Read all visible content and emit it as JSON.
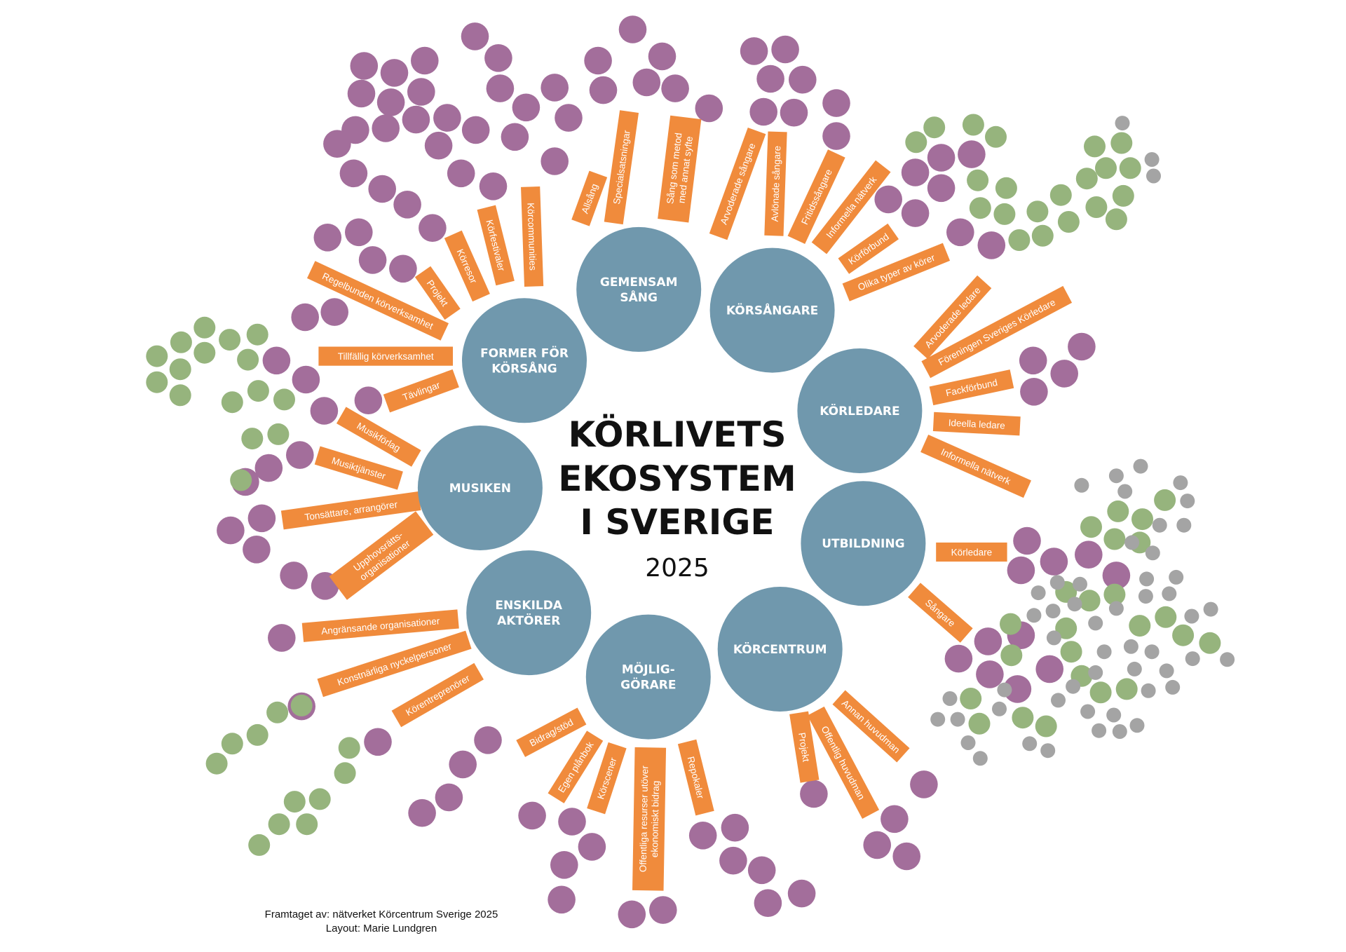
{
  "colors": {
    "hub": "#7098ad",
    "bar": "#f08b3c",
    "purple": "#a36e9b",
    "green": "#96b47d",
    "gray": "#a4a4a4",
    "title": "#111111"
  },
  "title": {
    "line1": "KÖRLIVETS",
    "line2": "EKOSYSTEM",
    "line3": "I SVERIGE",
    "year": "2025"
  },
  "hubs": [
    {
      "id": "gemensam-sang",
      "lines": [
        "GEMENSAM",
        "SÅNG"
      ]
    },
    {
      "id": "korsangare",
      "lines": [
        "KÖRSÅNGARE"
      ]
    },
    {
      "id": "korledare",
      "lines": [
        "KÖRLEDARE"
      ]
    },
    {
      "id": "utbildning",
      "lines": [
        "UTBILDNING"
      ]
    },
    {
      "id": "korcentrum",
      "lines": [
        "KÖRCENTRUM"
      ]
    },
    {
      "id": "mojliggorare",
      "lines": [
        "MÖJLIG-",
        "GÖRARE"
      ]
    },
    {
      "id": "enskilda-aktorer",
      "lines": [
        "ENSKILDA",
        "AKTÖRER"
      ]
    },
    {
      "id": "musiken",
      "lines": [
        "MUSIKEN"
      ]
    },
    {
      "id": "former-for-korsang",
      "lines": [
        "FORMER FÖR",
        "KÖRSÅNG"
      ]
    }
  ],
  "spokes": [
    {
      "hub": "gemensam-sang",
      "lines": [
        "Allsång"
      ]
    },
    {
      "hub": "gemensam-sang",
      "lines": [
        "Specialsatsningar"
      ]
    },
    {
      "hub": "gemensam-sang",
      "lines": [
        "Sång som metod",
        "med annat syfte"
      ]
    },
    {
      "hub": "korsangare",
      "lines": [
        "Arvoderade sångare"
      ]
    },
    {
      "hub": "korsangare",
      "lines": [
        "Avlönade sångare"
      ]
    },
    {
      "hub": "korsangare",
      "lines": [
        "Fritidssångare"
      ]
    },
    {
      "hub": "korsangare",
      "lines": [
        "Informella nätverk"
      ]
    },
    {
      "hub": "korsangare",
      "lines": [
        "Körförbund"
      ]
    },
    {
      "hub": "korsangare",
      "lines": [
        "Olika typer av körer"
      ]
    },
    {
      "hub": "korledare",
      "lines": [
        "Arvoderade ledare"
      ]
    },
    {
      "hub": "korledare",
      "lines": [
        "Föreningen Sveriges Körledare"
      ]
    },
    {
      "hub": "korledare",
      "lines": [
        "Fackförbund"
      ]
    },
    {
      "hub": "korledare",
      "lines": [
        "Ideella ledare"
      ]
    },
    {
      "hub": "korledare",
      "lines": [
        "Informella nätverk"
      ]
    },
    {
      "hub": "utbildning",
      "lines": [
        "Körledare"
      ]
    },
    {
      "hub": "utbildning",
      "lines": [
        "Sångare"
      ]
    },
    {
      "hub": "korcentrum",
      "lines": [
        "Annan huvudman"
      ]
    },
    {
      "hub": "korcentrum",
      "lines": [
        "Offentlig huvudman"
      ]
    },
    {
      "hub": "korcentrum",
      "lines": [
        "Projekt"
      ]
    },
    {
      "hub": "mojliggorare",
      "lines": [
        "Repokaler"
      ]
    },
    {
      "hub": "mojliggorare",
      "lines": [
        "Offentliga resurser utöver",
        "ekonomiskt bidrag"
      ]
    },
    {
      "hub": "mojliggorare",
      "lines": [
        "Körscener"
      ]
    },
    {
      "hub": "mojliggorare",
      "lines": [
        "Egen plånbok"
      ]
    },
    {
      "hub": "mojliggorare",
      "lines": [
        "Bidrag/stöd"
      ]
    },
    {
      "hub": "enskilda-aktorer",
      "lines": [
        "Körentreprenörer"
      ]
    },
    {
      "hub": "enskilda-aktorer",
      "lines": [
        "Konstnärliga nyckelpersoner"
      ]
    },
    {
      "hub": "enskilda-aktorer",
      "lines": [
        "Angränsande organisationer"
      ]
    },
    {
      "hub": "musiken",
      "lines": [
        "Upphovsrätts-",
        "organisationer"
      ]
    },
    {
      "hub": "musiken",
      "lines": [
        "Tonsättare, arrangörer"
      ]
    },
    {
      "hub": "musiken",
      "lines": [
        "Musiktjänster"
      ]
    },
    {
      "hub": "musiken",
      "lines": [
        "Musikförlag"
      ]
    },
    {
      "hub": "former-for-korsang",
      "lines": [
        "Tävlingar"
      ]
    },
    {
      "hub": "former-for-korsang",
      "lines": [
        "Tillfällig körverksamhet"
      ]
    },
    {
      "hub": "former-for-korsang",
      "lines": [
        "Regelbunden körverksamhet"
      ]
    },
    {
      "hub": "former-for-korsang",
      "lines": [
        "Projekt"
      ]
    },
    {
      "hub": "former-for-korsang",
      "lines": [
        "Körresor"
      ]
    },
    {
      "hub": "former-for-korsang",
      "lines": [
        "Körfestivaler"
      ]
    },
    {
      "hub": "former-for-korsang",
      "lines": [
        "Körcommunities"
      ]
    }
  ],
  "credits": {
    "line1": "Framtaget av: nätverket Körcentrum Sverige 2025",
    "line2": "Layout: Marie Lundgren"
  }
}
